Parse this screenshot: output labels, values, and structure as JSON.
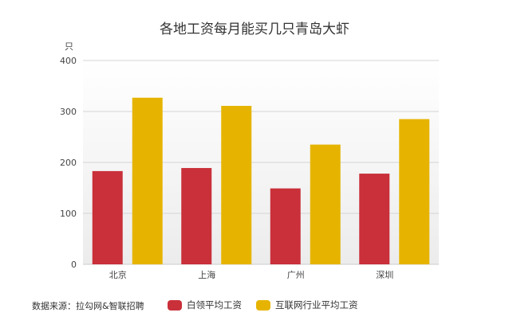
{
  "chart_data": {
    "type": "bar",
    "title": "各地工资每月能买几只青岛大虾",
    "ylabel": "只",
    "ylim": [
      0,
      400
    ],
    "yticks": [
      0,
      100,
      200,
      300,
      400
    ],
    "categories": [
      "北京",
      "上海",
      "广州",
      "深圳"
    ],
    "series": [
      {
        "name": "白领平均工资",
        "color": "#c9303a",
        "values": [
          183,
          189,
          149,
          178
        ]
      },
      {
        "name": "互联网行业平均工资",
        "color": "#e6b400",
        "values": [
          327,
          311,
          235,
          285
        ]
      }
    ],
    "grid": true,
    "legend_position": "bottom"
  },
  "footer": {
    "source": "数据来源：拉勾网&智联招聘"
  }
}
